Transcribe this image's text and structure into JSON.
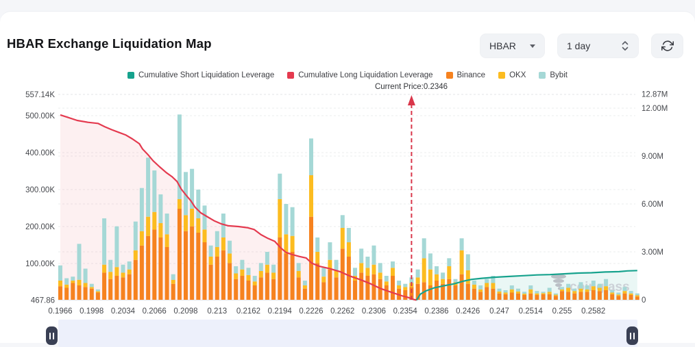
{
  "page": {
    "title": "HBAR Exchange Liquidation Map"
  },
  "controls": {
    "symbol_select": {
      "value": "HBAR"
    },
    "interval_select": {
      "value": "1 day"
    },
    "refresh_icon": "refresh-icon"
  },
  "legend": [
    {
      "label": "Cumulative Short Liquidation Leverage",
      "color": "#16A28D"
    },
    {
      "label": "Cumulative Long Liquidation Leverage",
      "color": "#E43A4F"
    },
    {
      "label": "Binance",
      "color": "#F6821F"
    },
    {
      "label": "OKX",
      "color": "#FCBC20"
    },
    {
      "label": "Bybit",
      "color": "#A5D8D6"
    }
  ],
  "annotation": {
    "current_price_label": "Current Price:0.2346"
  },
  "watermark": {
    "text": "coinglass",
    "icon": "coinglass-tornado-icon"
  },
  "chart_data": {
    "type": "bar",
    "subtype": "stacked-bars-with-cumulative-lines",
    "title": "HBAR Exchange Liquidation Map",
    "current_price": 0.2346,
    "current_price_x_index": 56,
    "x_axis": {
      "tick_labels": [
        "0.1966",
        "0.1998",
        "0.2034",
        "0.2066",
        "0.2098",
        "0.213",
        "0.2162",
        "0.2194",
        "0.2226",
        "0.2262",
        "0.2306",
        "0.2354",
        "0.2386",
        "0.2426",
        "0.247",
        "0.2514",
        "0.255",
        "0.2582"
      ],
      "label_every_n_bars": 5
    },
    "axes": {
      "left": {
        "title": "",
        "ticks": [
          {
            "label": "557.14K",
            "v": 557.14
          },
          {
            "label": "500.00K",
            "v": 500
          },
          {
            "label": "400.00K",
            "v": 400
          },
          {
            "label": "300.00K",
            "v": 300
          },
          {
            "label": "200.00K",
            "v": 200
          },
          {
            "label": "100.00K",
            "v": 100
          },
          {
            "label": "467.86",
            "v": 0.46786
          }
        ],
        "range_k": [
          0.46786,
          557.14
        ]
      },
      "right": {
        "title": "",
        "ticks": [
          {
            "label": "12.87M",
            "v": 12.87
          },
          {
            "label": "12.00M",
            "v": 12
          },
          {
            "label": "9.00M",
            "v": 9
          },
          {
            "label": "6.00M",
            "v": 6
          },
          {
            "label": "3.00M",
            "v": 3
          },
          {
            "label": "0",
            "v": 0
          }
        ],
        "range_m": [
          0,
          12.87
        ]
      }
    },
    "bars": {
      "stack_order": [
        "Binance",
        "OKX",
        "Bybit"
      ],
      "colors": {
        "Binance": "#F6821F",
        "OKX": "#FCBC20",
        "Bybit": "#A5D8D6"
      },
      "unit": "M",
      "values": [
        [
          0.85,
          0.35,
          0.95
        ],
        [
          0.75,
          0.2,
          0.4
        ],
        [
          1.05,
          0.15,
          0.25
        ],
        [
          0.9,
          0.35,
          2.25
        ],
        [
          0.8,
          0.25,
          0.9
        ],
        [
          0.7,
          0.1,
          0.2
        ],
        [
          0.45,
          0.08,
          0.12
        ],
        [
          1.7,
          0.5,
          2.9
        ],
        [
          1.3,
          0.45,
          0.75
        ],
        [
          1.5,
          0.55,
          2.55
        ],
        [
          1.4,
          0.3,
          0.5
        ],
        [
          1.6,
          0.3,
          0.5
        ],
        [
          2.5,
          0.6,
          1.8
        ],
        [
          3.4,
          0.9,
          2.7
        ],
        [
          4.0,
          1.2,
          3.7
        ],
        [
          4.4,
          1.1,
          2.6
        ],
        [
          3.9,
          0.9,
          1.8
        ],
        [
          3.3,
          0.8,
          1.3
        ],
        [
          1.0,
          0.25,
          0.35
        ],
        [
          5.7,
          0.6,
          5.3
        ],
        [
          4.3,
          1.0,
          2.7
        ],
        [
          4.6,
          1.1,
          2.5
        ],
        [
          4.2,
          0.9,
          1.8
        ],
        [
          3.6,
          0.8,
          1.5
        ],
        [
          2.2,
          0.5,
          0.7
        ],
        [
          2.7,
          0.6,
          1.0
        ],
        [
          3.1,
          0.8,
          1.5
        ],
        [
          2.3,
          0.6,
          0.8
        ],
        [
          1.3,
          0.35,
          0.45
        ],
        [
          1.5,
          0.4,
          0.6
        ],
        [
          1.2,
          0.35,
          0.45
        ],
        [
          0.9,
          0.25,
          0.35
        ],
        [
          1.4,
          0.4,
          0.5
        ],
        [
          1.7,
          0.5,
          0.8
        ],
        [
          1.3,
          0.4,
          0.5
        ],
        [
          3.9,
          2.4,
          1.6
        ],
        [
          2.9,
          1.2,
          1.9
        ],
        [
          3.0,
          1.0,
          1.8
        ],
        [
          1.4,
          0.4,
          0.5
        ],
        [
          0.7,
          0.2,
          0.3
        ],
        [
          5.2,
          2.6,
          2.3
        ],
        [
          2.3,
          0.7,
          0.9
        ],
        [
          1.1,
          0.35,
          0.55
        ],
        [
          1.9,
          0.6,
          1.1
        ],
        [
          1.4,
          0.45,
          0.65
        ],
        [
          3.2,
          1.3,
          0.8
        ],
        [
          2.7,
          0.9,
          0.9
        ],
        [
          1.2,
          0.3,
          0.5
        ],
        [
          1.7,
          0.6,
          0.9
        ],
        [
          1.5,
          0.5,
          0.7
        ],
        [
          1.6,
          0.6,
          1.2
        ],
        [
          1.3,
          0.4,
          0.6
        ],
        [
          0.9,
          0.25,
          0.35
        ],
        [
          1.5,
          0.5,
          0.4
        ],
        [
          0.7,
          0.2,
          0.3
        ],
        [
          0.6,
          0.2,
          0.2
        ],
        [
          0.8,
          0.25,
          0.35
        ],
        [
          1.0,
          0.4,
          0.5
        ],
        [
          1.1,
          1.5,
          1.25
        ],
        [
          0.9,
          1.0,
          1.0
        ],
        [
          1.2,
          0.4,
          0.5
        ],
        [
          1.0,
          0.3,
          0.4
        ],
        [
          1.3,
          0.8,
          0.5
        ],
        [
          0.9,
          0.2,
          0.2
        ],
        [
          1.6,
          1.5,
          0.75
        ],
        [
          1.0,
          0.85,
          1.0
        ],
        [
          0.7,
          0.25,
          0.25
        ],
        [
          0.5,
          0.15,
          0.25
        ],
        [
          0.8,
          0.25,
          0.25
        ],
        [
          0.7,
          0.35,
          0.45
        ],
        [
          0.4,
          0.12,
          0.18
        ],
        [
          0.35,
          0.1,
          0.15
        ],
        [
          0.45,
          0.2,
          0.25
        ],
        [
          0.4,
          0.12,
          0.18
        ],
        [
          0.3,
          0.08,
          0.12
        ],
        [
          0.4,
          0.25,
          0.25
        ],
        [
          0.3,
          0.1,
          0.15
        ],
        [
          0.35,
          0.07,
          0.08
        ],
        [
          0.35,
          0.15,
          0.25
        ],
        [
          0.25,
          0.07,
          0.08
        ],
        [
          0.55,
          0.1,
          0.15
        ],
        [
          0.5,
          0.25,
          0.25
        ],
        [
          0.4,
          0.15,
          0.15
        ],
        [
          0.5,
          0.2,
          0.4
        ],
        [
          0.5,
          0.15,
          0.25
        ],
        [
          0.6,
          0.25,
          0.35
        ],
        [
          0.55,
          0.2,
          0.25
        ],
        [
          0.6,
          0.25,
          0.45
        ],
        [
          0.35,
          0.1,
          0.15
        ],
        [
          0.25,
          0.08,
          0.12
        ],
        [
          0.4,
          0.15,
          0.25
        ],
        [
          0.3,
          0.1,
          0.15
        ],
        [
          0.2,
          0.08,
          0.12
        ]
      ]
    },
    "lines": {
      "cumulative_long": {
        "name": "Cumulative Long Liquidation Leverage",
        "color": "#E43A4F",
        "fill": "rgba(228,58,79,0.08)",
        "unit": "K",
        "points": [
          [
            0,
            502
          ],
          [
            1.1,
            496
          ],
          [
            2.7,
            487
          ],
          [
            4.4,
            482
          ],
          [
            6,
            479
          ],
          [
            7.1,
            470
          ],
          [
            8.2,
            462
          ],
          [
            9.3,
            455
          ],
          [
            10.4,
            448
          ],
          [
            11.5,
            437
          ],
          [
            12.6,
            424
          ],
          [
            13.1,
            410
          ],
          [
            13.9,
            396
          ],
          [
            14.8,
            378
          ],
          [
            15.8,
            362
          ],
          [
            16.9,
            346
          ],
          [
            17.8,
            335
          ],
          [
            18.6,
            322
          ],
          [
            19.3,
            301
          ],
          [
            20,
            286
          ],
          [
            20.8,
            270
          ],
          [
            21.5,
            252
          ],
          [
            22.4,
            237
          ],
          [
            23.5,
            226
          ],
          [
            24.6,
            215
          ],
          [
            25.7,
            207
          ],
          [
            26.8,
            202
          ],
          [
            28.4,
            200
          ],
          [
            29.8,
            197
          ],
          [
            30.9,
            192
          ],
          [
            32,
            178
          ],
          [
            33.1,
            168
          ],
          [
            34.2,
            160
          ],
          [
            35.1,
            143
          ],
          [
            36,
            130
          ],
          [
            37,
            124
          ],
          [
            38.1,
            119
          ],
          [
            39.2,
            115
          ],
          [
            40.1,
            101
          ],
          [
            41.2,
            93
          ],
          [
            43,
            86
          ],
          [
            44.6,
            78
          ],
          [
            46.2,
            66
          ],
          [
            47.9,
            56
          ],
          [
            49.5,
            45
          ],
          [
            51.1,
            32
          ],
          [
            52.8,
            22
          ],
          [
            54.4,
            13
          ],
          [
            55.5,
            8
          ],
          [
            56.3,
            3
          ],
          [
            56.8,
            1
          ]
        ]
      },
      "cumulative_short": {
        "name": "Cumulative Short Liquidation Leverage",
        "color": "#16A28D",
        "fill": "rgba(22,162,141,0.09)",
        "unit": "K",
        "points": [
          [
            56.8,
            1
          ],
          [
            57.4,
            17
          ],
          [
            58.3,
            26
          ],
          [
            59.6,
            34
          ],
          [
            61.2,
            40
          ],
          [
            62.8,
            45
          ],
          [
            64.2,
            52
          ],
          [
            65.6,
            57
          ],
          [
            67.2,
            60
          ],
          [
            69.4,
            63
          ],
          [
            71.6,
            65
          ],
          [
            73.8,
            67
          ],
          [
            76,
            69
          ],
          [
            78.1,
            70
          ],
          [
            80.3,
            72
          ],
          [
            82.5,
            74
          ],
          [
            84.7,
            75
          ],
          [
            86.9,
            77
          ],
          [
            89.1,
            78
          ],
          [
            90.4,
            80
          ],
          [
            92,
            81
          ]
        ]
      }
    },
    "grid": {
      "horizontal": true,
      "style": "dashed"
    },
    "legend_position": "top-center"
  },
  "scrollbar": {
    "left_handle_icon": "drag-handle-icon",
    "right_handle_icon": "drag-handle-icon"
  }
}
